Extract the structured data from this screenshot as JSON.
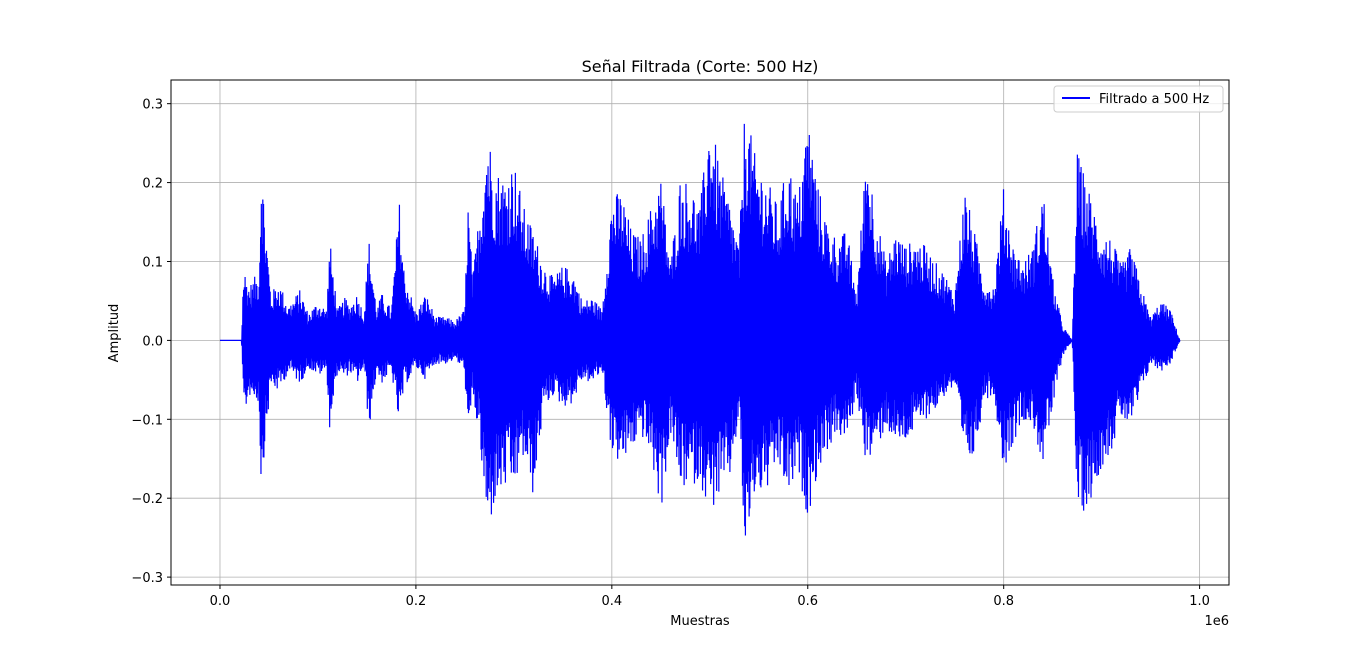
{
  "chart_data": {
    "type": "line",
    "title": "Señal Filtrada (Corte: 500 Hz)",
    "xlabel": "Muestras",
    "ylabel": "Amplitud",
    "x_offset_label": "1e6",
    "xlim": [
      -0.05,
      1.03
    ],
    "ylim": [
      -0.31,
      0.33
    ],
    "xticks": [
      0.0,
      0.2,
      0.4,
      0.6,
      0.8,
      1.0
    ],
    "xtick_labels": [
      "0.0",
      "0.2",
      "0.4",
      "0.6",
      "0.8",
      "1.0"
    ],
    "yticks": [
      -0.3,
      -0.2,
      -0.1,
      0.0,
      0.1,
      0.2,
      0.3
    ],
    "ytick_labels": [
      "−0.3",
      "−0.2",
      "−0.1",
      "0.0",
      "0.1",
      "0.2",
      "0.3"
    ],
    "grid": true,
    "legend_position": "top-right",
    "series": [
      {
        "name": "Filtrado a 500 Hz",
        "color": "#0000ff",
        "envelope": {
          "x": [
            0.0,
            0.022,
            0.024,
            0.03,
            0.04,
            0.042,
            0.046,
            0.052,
            0.06,
            0.07,
            0.082,
            0.09,
            0.1,
            0.109,
            0.112,
            0.12,
            0.128,
            0.132,
            0.14,
            0.147,
            0.152,
            0.16,
            0.165,
            0.175,
            0.183,
            0.188,
            0.2,
            0.21,
            0.22,
            0.23,
            0.24,
            0.25,
            0.253,
            0.258,
            0.265,
            0.273,
            0.28,
            0.29,
            0.3,
            0.31,
            0.32,
            0.33,
            0.34,
            0.35,
            0.36,
            0.37,
            0.38,
            0.39,
            0.4,
            0.41,
            0.42,
            0.43,
            0.44,
            0.45,
            0.46,
            0.47,
            0.48,
            0.49,
            0.5,
            0.51,
            0.52,
            0.53,
            0.536,
            0.545,
            0.56,
            0.57,
            0.58,
            0.59,
            0.6,
            0.61,
            0.62,
            0.63,
            0.64,
            0.65,
            0.66,
            0.67,
            0.68,
            0.69,
            0.7,
            0.71,
            0.72,
            0.73,
            0.74,
            0.75,
            0.76,
            0.77,
            0.78,
            0.79,
            0.8,
            0.81,
            0.82,
            0.83,
            0.84,
            0.85,
            0.86,
            0.87,
            0.875,
            0.88,
            0.89,
            0.9,
            0.91,
            0.92,
            0.93,
            0.94,
            0.95,
            0.96,
            0.97,
            0.98
          ],
          "upper": [
            0.0,
            0.0,
            0.095,
            0.07,
            0.09,
            0.24,
            0.16,
            0.06,
            0.075,
            0.045,
            0.065,
            0.035,
            0.05,
            0.04,
            0.13,
            0.04,
            0.055,
            0.045,
            0.06,
            0.035,
            0.13,
            0.04,
            0.06,
            0.04,
            0.18,
            0.09,
            0.035,
            0.06,
            0.03,
            0.03,
            0.025,
            0.04,
            0.185,
            0.08,
            0.17,
            0.275,
            0.22,
            0.21,
            0.23,
            0.17,
            0.14,
            0.1,
            0.08,
            0.095,
            0.09,
            0.05,
            0.055,
            0.04,
            0.185,
            0.19,
            0.14,
            0.13,
            0.17,
            0.21,
            0.1,
            0.21,
            0.2,
            0.17,
            0.29,
            0.22,
            0.18,
            0.12,
            0.305,
            0.24,
            0.2,
            0.17,
            0.23,
            0.18,
            0.29,
            0.2,
            0.15,
            0.13,
            0.14,
            0.06,
            0.25,
            0.16,
            0.1,
            0.14,
            0.12,
            0.13,
            0.12,
            0.1,
            0.085,
            0.06,
            0.195,
            0.14,
            0.08,
            0.07,
            0.195,
            0.12,
            0.1,
            0.12,
            0.195,
            0.08,
            0.02,
            0.0,
            0.24,
            0.22,
            0.18,
            0.14,
            0.13,
            0.095,
            0.12,
            0.07,
            0.03,
            0.05,
            0.04,
            0.0
          ],
          "lower": [
            0.0,
            0.0,
            -0.1,
            -0.07,
            -0.08,
            -0.195,
            -0.13,
            -0.06,
            -0.065,
            -0.04,
            -0.055,
            -0.035,
            -0.045,
            -0.04,
            -0.115,
            -0.04,
            -0.05,
            -0.04,
            -0.055,
            -0.035,
            -0.115,
            -0.04,
            -0.055,
            -0.04,
            -0.11,
            -0.06,
            -0.035,
            -0.05,
            -0.03,
            -0.03,
            -0.025,
            -0.04,
            -0.145,
            -0.07,
            -0.13,
            -0.25,
            -0.21,
            -0.19,
            -0.19,
            -0.15,
            -0.2,
            -0.09,
            -0.07,
            -0.085,
            -0.08,
            -0.05,
            -0.055,
            -0.04,
            -0.145,
            -0.16,
            -0.14,
            -0.12,
            -0.15,
            -0.22,
            -0.12,
            -0.19,
            -0.185,
            -0.18,
            -0.22,
            -0.2,
            -0.18,
            -0.1,
            -0.28,
            -0.2,
            -0.19,
            -0.16,
            -0.2,
            -0.17,
            -0.225,
            -0.17,
            -0.14,
            -0.12,
            -0.13,
            -0.07,
            -0.16,
            -0.14,
            -0.11,
            -0.135,
            -0.13,
            -0.115,
            -0.1,
            -0.09,
            -0.07,
            -0.06,
            -0.16,
            -0.15,
            -0.075,
            -0.07,
            -0.165,
            -0.13,
            -0.1,
            -0.11,
            -0.16,
            -0.09,
            -0.02,
            0.0,
            -0.22,
            -0.22,
            -0.2,
            -0.16,
            -0.14,
            -0.1,
            -0.11,
            -0.07,
            -0.03,
            -0.04,
            -0.03,
            0.0
          ]
        }
      }
    ]
  }
}
